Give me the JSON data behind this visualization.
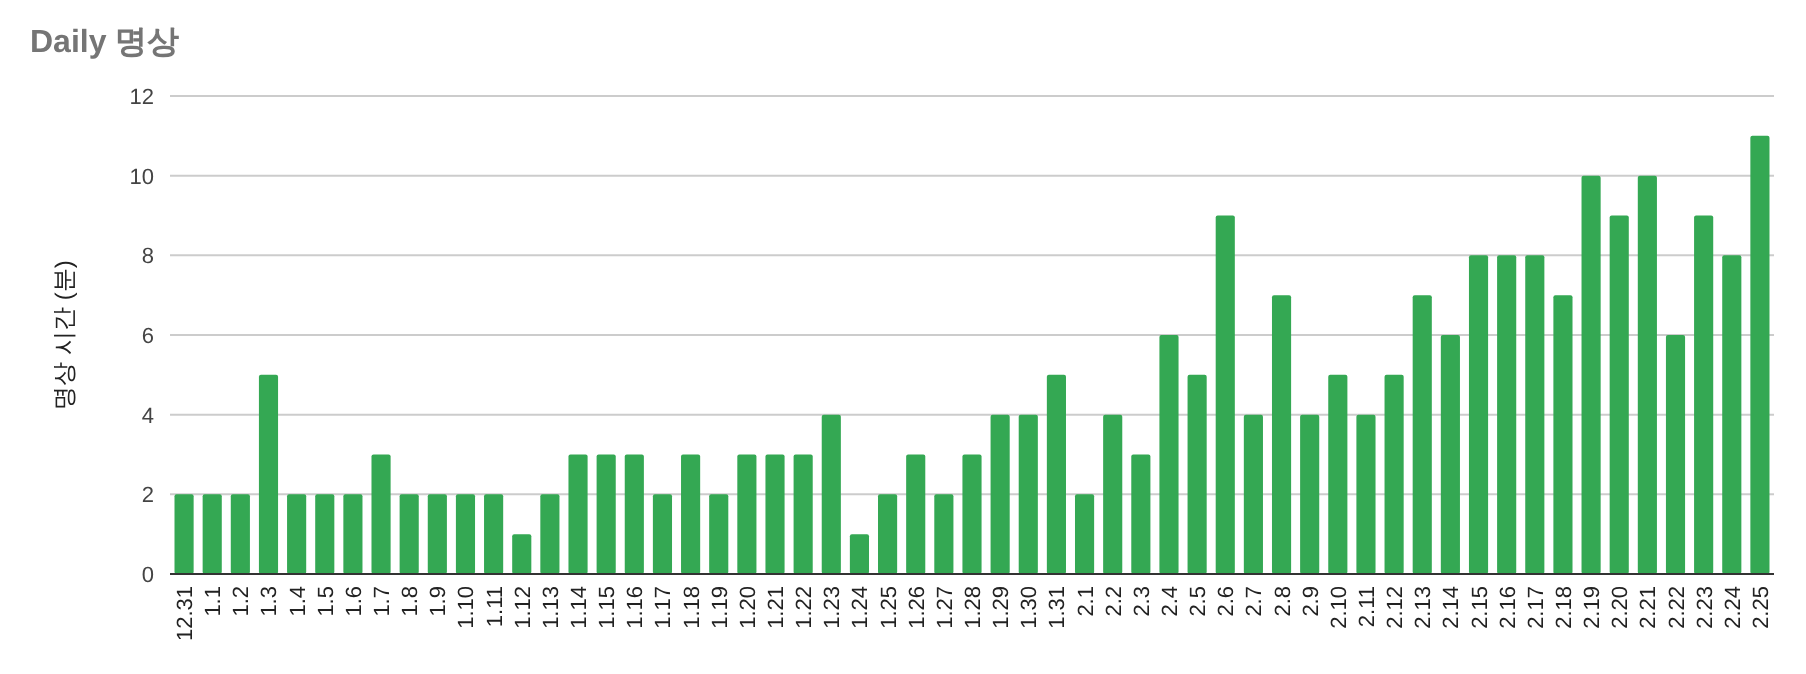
{
  "chart_data": {
    "type": "bar",
    "title": "Daily 명상",
    "ylabel": "명상 시간 (분)",
    "categories": [
      "12.31",
      "1.1",
      "1.2",
      "1.3",
      "1.4",
      "1.5",
      "1.6",
      "1.7",
      "1.8",
      "1.9",
      "1.10",
      "1.11",
      "1.12",
      "1.13",
      "1.14",
      "1.15",
      "1.16",
      "1.17",
      "1.18",
      "1.19",
      "1.20",
      "1.21",
      "1.22",
      "1.23",
      "1.24",
      "1.25",
      "1.26",
      "1.27",
      "1.28",
      "1.29",
      "1.30",
      "1.31",
      "2.1",
      "2.2",
      "2.3",
      "2.4",
      "2.5",
      "2.6",
      "2.7",
      "2.8",
      "2.9",
      "2.10",
      "2.11",
      "2.12",
      "2.13",
      "2.14",
      "2.15",
      "2.16",
      "2.17",
      "2.18",
      "2.19",
      "2.20",
      "2.21",
      "2.22",
      "2.23",
      "2.24",
      "2.25"
    ],
    "values": [
      2,
      2,
      2,
      5,
      2,
      2,
      2,
      3,
      2,
      2,
      2,
      2,
      1,
      2,
      3,
      3,
      3,
      2,
      3,
      2,
      3,
      3,
      3,
      4,
      1,
      2,
      3,
      2,
      3,
      4,
      4,
      5,
      2,
      4,
      3,
      6,
      5,
      9,
      4,
      7,
      4,
      5,
      4,
      5,
      7,
      6,
      8,
      8,
      8,
      7,
      10,
      9,
      10,
      6,
      9,
      8,
      11
    ],
    "color": "#34a853",
    "ylim": [
      0,
      12
    ],
    "yticks": [
      0,
      2,
      4,
      6,
      8,
      10,
      12
    ],
    "grid": "y"
  }
}
